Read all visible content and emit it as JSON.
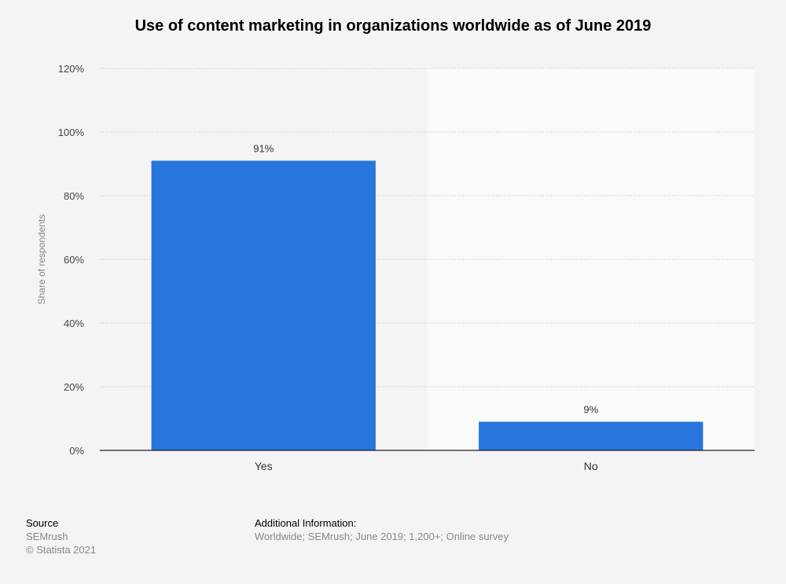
{
  "title": "Use of content marketing in organizations worldwide as of June 2019",
  "chart_data": {
    "type": "bar",
    "categories": [
      "Yes",
      "No"
    ],
    "values": [
      91,
      9
    ],
    "value_labels": [
      "91%",
      "9%"
    ],
    "ylabel": "Share of respondents",
    "ylim": [
      0,
      120
    ],
    "yticks": [
      0,
      20,
      40,
      60,
      80,
      100,
      120
    ],
    "ytick_labels": [
      "0%",
      "20%",
      "40%",
      "60%",
      "80%",
      "100%",
      "120%"
    ],
    "grid": true,
    "bar_color": "#2876dd"
  },
  "footer": {
    "source_heading": "Source",
    "source_name": "SEMrush",
    "copyright": "© Statista 2021",
    "additional_heading": "Additional Information:",
    "additional_text": "Worldwide; SEMrush; June 2019; 1,200+; Online survey"
  }
}
